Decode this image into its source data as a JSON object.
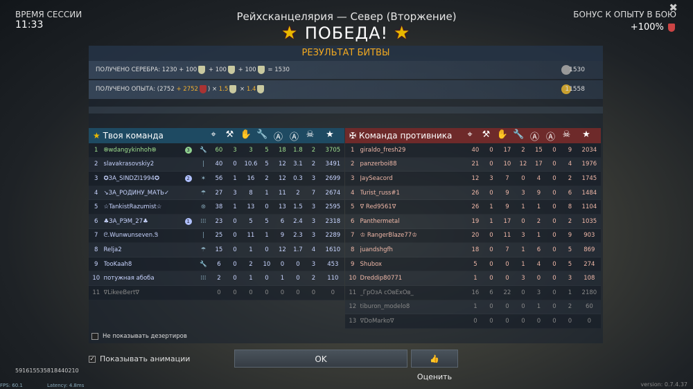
{
  "session": {
    "label": "ВРЕМЯ СЕССИИ",
    "time": "11:33"
  },
  "battle": {
    "title": "Рейхсканцелярия — Север (Вторжение)",
    "result": "ПОБЕДА!"
  },
  "bonus": {
    "label": "БОНУС К ОПЫТУ В БОЮ",
    "value": "+100%"
  },
  "result": {
    "header": "РЕЗУЛЬТАТ БИТВЫ",
    "silver": {
      "label": "ПОЛУЧЕНО СЕРЕБРА:",
      "base": "1230",
      "add1": "+ 100",
      "add2": "+ 100",
      "add3": "+ 100",
      "eq": "= 1530",
      "total": "1530"
    },
    "exp": {
      "label": "ПОЛУЧЕНО ОПЫТА:",
      "open": "(2752",
      "plus": "+",
      "bonus": "2752",
      "mul1": ") ×",
      "m1": "1.5",
      "mul2": "×",
      "m2": "1.4",
      "total": "11558"
    }
  },
  "columns": [
    "crosshair-icon",
    "artillery-icon",
    "hand-icon",
    "wrench-icon",
    "shield-a-icon",
    "a-circle-icon",
    "skull-icon",
    "star-icon"
  ],
  "column_glyphs": [
    "⌖",
    "⚒",
    "✋",
    "🔧",
    "Ⓐ",
    "Ⓐ",
    "☠",
    "★"
  ],
  "my_team": {
    "title": "Твоя команда",
    "rows": [
      {
        "n": "1",
        "name": "֍wdangykinhoh֍",
        "badge": "3",
        "cls": "🔧",
        "s": [
          "60",
          "3",
          "3",
          "5",
          "18",
          "1.8",
          "2",
          "3705"
        ]
      },
      {
        "n": "2",
        "name": "slavakrasovskiy2",
        "cls": "|",
        "s": [
          "40",
          "0",
          "10.6",
          "5",
          "12",
          "3.1",
          "2",
          "3491"
        ]
      },
      {
        "n": "3",
        "name": "✪ЗА_SINDZI1994✪",
        "badge": "2",
        "cls": "✶",
        "s": [
          "56",
          "1",
          "16",
          "2",
          "12",
          "0.3",
          "3",
          "2699"
        ]
      },
      {
        "n": "4",
        "name": "↘ЗА_РОДИНУ_МАТЬ✓",
        "cls": "☂",
        "s": [
          "27",
          "3",
          "8",
          "1",
          "11",
          "2",
          "7",
          "2674"
        ]
      },
      {
        "n": "5",
        "name": "☆TankistRazumist☆",
        "cls": "⊛",
        "s": [
          "38",
          "1",
          "13",
          "0",
          "13",
          "1.5",
          "3",
          "2595"
        ]
      },
      {
        "n": "6",
        "name": "♣ЗА_РЭМ_27♣",
        "badge": "1",
        "cls": "⁞⁞⁞",
        "s": [
          "23",
          "0",
          "5",
          "5",
          "6",
          "2.4",
          "3",
          "2318"
        ]
      },
      {
        "n": "7",
        "name": "ᘓ.Wunwunseven.Ꮥ",
        "cls": "|",
        "s": [
          "25",
          "0",
          "11",
          "1",
          "9",
          "2.3",
          "3",
          "2289"
        ]
      },
      {
        "n": "8",
        "name": "Relja2",
        "cls": "☂",
        "s": [
          "15",
          "0",
          "1",
          "0",
          "12",
          "1.7",
          "4",
          "1610"
        ]
      },
      {
        "n": "9",
        "name": "TooKaah8",
        "cls": "🔧",
        "s": [
          "6",
          "0",
          "2",
          "10",
          "0",
          "0",
          "3",
          "453"
        ]
      },
      {
        "n": "10",
        "name": "потужная абоба",
        "cls": "⁞⁞⁞",
        "s": [
          "2",
          "0",
          "1",
          "0",
          "1",
          "0",
          "2",
          "110"
        ]
      },
      {
        "n": "11",
        "name": "∇LikeeBert∇",
        "gone": true,
        "cls": "",
        "s": [
          "0",
          "0",
          "0",
          "0",
          "0",
          "0",
          "0",
          "0"
        ]
      }
    ]
  },
  "enemy_team": {
    "title": "Команда противника",
    "rows": [
      {
        "n": "1",
        "name": "giraldo_fresh29",
        "s": [
          "40",
          "0",
          "17",
          "2",
          "15",
          "0",
          "9",
          "2034"
        ]
      },
      {
        "n": "2",
        "name": "panzerboi88",
        "s": [
          "21",
          "0",
          "10",
          "12",
          "17",
          "0",
          "4",
          "1976"
        ]
      },
      {
        "n": "3",
        "name": "JaySeacord",
        "s": [
          "12",
          "3",
          "7",
          "0",
          "4",
          "0",
          "2",
          "1745"
        ]
      },
      {
        "n": "4",
        "name": "Turist_russ#1",
        "s": [
          "26",
          "0",
          "9",
          "3",
          "9",
          "0",
          "6",
          "1484"
        ]
      },
      {
        "n": "5",
        "name": "∇ Red9561∇",
        "s": [
          "26",
          "1",
          "9",
          "1",
          "1",
          "0",
          "8",
          "1104"
        ]
      },
      {
        "n": "6",
        "name": "Panthermetal",
        "s": [
          "19",
          "1",
          "17",
          "0",
          "2",
          "0",
          "2",
          "1035"
        ]
      },
      {
        "n": "7",
        "name": "♔ RangerBlaze77♔",
        "s": [
          "20",
          "0",
          "11",
          "3",
          "1",
          "0",
          "9",
          "903"
        ]
      },
      {
        "n": "8",
        "name": "juandshgfh",
        "s": [
          "18",
          "0",
          "7",
          "1",
          "6",
          "0",
          "5",
          "869"
        ]
      },
      {
        "n": "9",
        "name": "Shubox",
        "s": [
          "5",
          "0",
          "0",
          "1",
          "4",
          "0",
          "5",
          "274"
        ]
      },
      {
        "n": "10",
        "name": "Dreddip80771",
        "s": [
          "1",
          "0",
          "0",
          "3",
          "0",
          "0",
          "3",
          "108"
        ]
      },
      {
        "n": "11",
        "name": "_ГрОзА сОвЕхОв_",
        "gone": true,
        "s": [
          "16",
          "6",
          "22",
          "0",
          "3",
          "0",
          "1",
          "2180"
        ]
      },
      {
        "n": "12",
        "name": "tiburon_modelo8",
        "gone": true,
        "s": [
          "1",
          "0",
          "0",
          "0",
          "1",
          "0",
          "2",
          "60"
        ]
      },
      {
        "n": "13",
        "name": "∇DoMarko∇",
        "gone": true,
        "s": [
          "0",
          "0",
          "0",
          "0",
          "0",
          "0",
          "0",
          "0"
        ]
      }
    ]
  },
  "controls": {
    "hide_deserters": "Не показывать дезертиров",
    "hide_deserters_checked": false,
    "show_anim": "Показывать анимации",
    "show_anim_checked": true,
    "ok": "OK",
    "rate": "Оценить"
  },
  "footer": {
    "id": "591615535818440210",
    "fps": "FPS: 60.1",
    "latency": "Latency: 4.8ms",
    "version": "version: 0.7.4.37"
  }
}
